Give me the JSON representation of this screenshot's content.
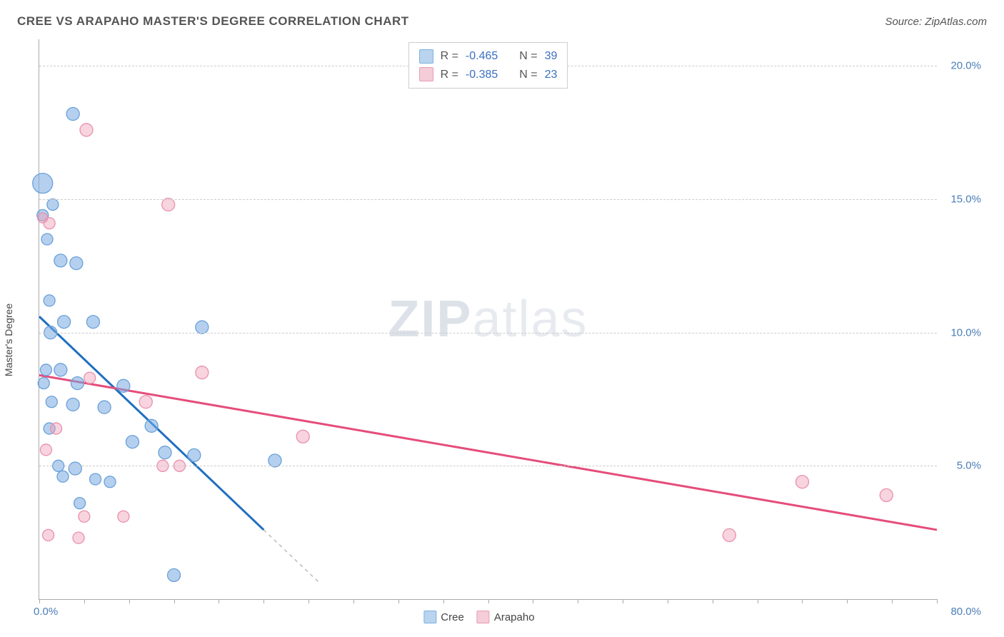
{
  "title": "CREE VS ARAPAHO MASTER'S DEGREE CORRELATION CHART",
  "source_label": "Source: ZipAtlas.com",
  "ylabel": "Master's Degree",
  "watermark_a": "ZIP",
  "watermark_b": "atlas",
  "xlim": [
    0,
    80
  ],
  "ylim": [
    0,
    21
  ],
  "x_axis": {
    "min_label": "0.0%",
    "max_label": "80.0%",
    "ticks_at": [
      0,
      4,
      8,
      12,
      16,
      20,
      24,
      28,
      32,
      36,
      40,
      44,
      48,
      52,
      56,
      60,
      64,
      68,
      72,
      76,
      80
    ]
  },
  "y_axis": {
    "gridlines": [
      5,
      10,
      15,
      20
    ],
    "labels": [
      "5.0%",
      "10.0%",
      "15.0%",
      "20.0%"
    ]
  },
  "colors": {
    "blue_fill": "rgba(120,170,225,0.55)",
    "blue_stroke": "#6aa0d8",
    "pink_fill": "rgba(240,160,185,0.45)",
    "pink_stroke": "#e890ae",
    "blue_line": "#1f6fc0",
    "pink_line": "#e54d7b",
    "grid": "#cccccc",
    "axis": "#aaaaaa",
    "value_text": "#3a6fc0"
  },
  "series": [
    {
      "name": "Cree",
      "color_fill": "rgba(120,170,225,0.55)",
      "color_stroke": "#6aa0d8",
      "swatch_fill": "#b9d4ef",
      "swatch_border": "#7ab0e0",
      "R_label": "-0.465",
      "N_label": "39",
      "trend": {
        "x1": 0,
        "y1": 10.6,
        "x2": 25,
        "y2": 0.6,
        "solid_until_x": 20
      },
      "points": [
        {
          "x": 0.3,
          "y": 15.6,
          "r": 14
        },
        {
          "x": 3.0,
          "y": 18.2,
          "r": 9
        },
        {
          "x": 1.2,
          "y": 14.8,
          "r": 8
        },
        {
          "x": 0.3,
          "y": 14.4,
          "r": 8
        },
        {
          "x": 0.7,
          "y": 13.5,
          "r": 8
        },
        {
          "x": 1.9,
          "y": 12.7,
          "r": 9
        },
        {
          "x": 3.3,
          "y": 12.6,
          "r": 9
        },
        {
          "x": 0.9,
          "y": 11.2,
          "r": 8
        },
        {
          "x": 2.2,
          "y": 10.4,
          "r": 9
        },
        {
          "x": 4.8,
          "y": 10.4,
          "r": 9
        },
        {
          "x": 14.5,
          "y": 10.2,
          "r": 9
        },
        {
          "x": 1.0,
          "y": 10.0,
          "r": 9
        },
        {
          "x": 0.6,
          "y": 8.6,
          "r": 8
        },
        {
          "x": 1.9,
          "y": 8.6,
          "r": 9
        },
        {
          "x": 0.4,
          "y": 8.1,
          "r": 8
        },
        {
          "x": 3.4,
          "y": 8.1,
          "r": 9
        },
        {
          "x": 7.5,
          "y": 8.0,
          "r": 9
        },
        {
          "x": 1.1,
          "y": 7.4,
          "r": 8
        },
        {
          "x": 3.0,
          "y": 7.3,
          "r": 9
        },
        {
          "x": 5.8,
          "y": 7.2,
          "r": 9
        },
        {
          "x": 0.9,
          "y": 6.4,
          "r": 8
        },
        {
          "x": 10.0,
          "y": 6.5,
          "r": 9
        },
        {
          "x": 8.3,
          "y": 5.9,
          "r": 9
        },
        {
          "x": 11.2,
          "y": 5.5,
          "r": 9
        },
        {
          "x": 13.8,
          "y": 5.4,
          "r": 9
        },
        {
          "x": 21.0,
          "y": 5.2,
          "r": 9
        },
        {
          "x": 1.7,
          "y": 5.0,
          "r": 8
        },
        {
          "x": 3.2,
          "y": 4.9,
          "r": 9
        },
        {
          "x": 2.1,
          "y": 4.6,
          "r": 8
        },
        {
          "x": 5.0,
          "y": 4.5,
          "r": 8
        },
        {
          "x": 6.3,
          "y": 4.4,
          "r": 8
        },
        {
          "x": 3.6,
          "y": 3.6,
          "r": 8
        },
        {
          "x": 12.0,
          "y": 0.9,
          "r": 9
        }
      ]
    },
    {
      "name": "Arapaho",
      "color_fill": "rgba(240,160,185,0.45)",
      "color_stroke": "#e890ae",
      "swatch_fill": "#f4cdd9",
      "swatch_border": "#e99bb5",
      "R_label": "-0.385",
      "N_label": "23",
      "trend": {
        "x1": 0,
        "y1": 8.4,
        "x2": 80,
        "y2": 2.6,
        "solid_until_x": 80
      },
      "points": [
        {
          "x": 4.2,
          "y": 17.6,
          "r": 9
        },
        {
          "x": 11.5,
          "y": 14.8,
          "r": 9
        },
        {
          "x": 0.9,
          "y": 14.1,
          "r": 8
        },
        {
          "x": 0.3,
          "y": 14.3,
          "r": 7
        },
        {
          "x": 14.5,
          "y": 8.5,
          "r": 9
        },
        {
          "x": 4.5,
          "y": 8.3,
          "r": 8
        },
        {
          "x": 9.5,
          "y": 7.4,
          "r": 9
        },
        {
          "x": 1.5,
          "y": 6.4,
          "r": 8
        },
        {
          "x": 23.5,
          "y": 6.1,
          "r": 9
        },
        {
          "x": 0.6,
          "y": 5.6,
          "r": 8
        },
        {
          "x": 11.0,
          "y": 5.0,
          "r": 8
        },
        {
          "x": 12.5,
          "y": 5.0,
          "r": 8
        },
        {
          "x": 68.0,
          "y": 4.4,
          "r": 9
        },
        {
          "x": 75.5,
          "y": 3.9,
          "r": 9
        },
        {
          "x": 4.0,
          "y": 3.1,
          "r": 8
        },
        {
          "x": 7.5,
          "y": 3.1,
          "r": 8
        },
        {
          "x": 61.5,
          "y": 2.4,
          "r": 9
        },
        {
          "x": 0.8,
          "y": 2.4,
          "r": 8
        },
        {
          "x": 3.5,
          "y": 2.3,
          "r": 8
        }
      ]
    }
  ],
  "legend_bottom": [
    "Cree",
    "Arapaho"
  ]
}
